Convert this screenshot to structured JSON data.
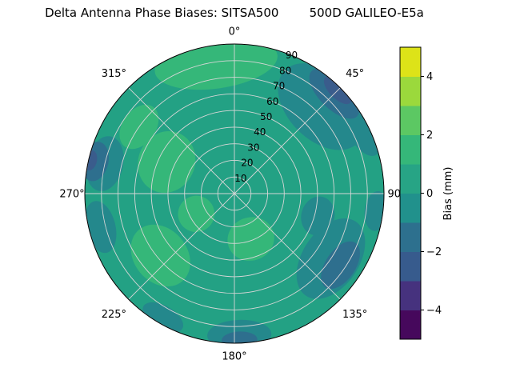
{
  "chart_data": {
    "type": "heatmap",
    "projection": "polar",
    "title": "Delta Antenna Phase Biases: SITSA500        500D GALILEO-E5a",
    "colormap": "viridis",
    "rmax": 90,
    "rlabel_angle_deg": 22.5,
    "angular_ticks": [
      {
        "deg": 0,
        "label": "0°"
      },
      {
        "deg": 45,
        "label": "45°"
      },
      {
        "deg": 90,
        "label": "90°"
      },
      {
        "deg": 135,
        "label": "135°"
      },
      {
        "deg": 180,
        "label": "180°"
      },
      {
        "deg": 225,
        "label": "225°"
      },
      {
        "deg": 270,
        "label": "270°"
      },
      {
        "deg": 315,
        "label": "315°"
      }
    ],
    "radial_ticks": {
      "values": [
        10,
        20,
        30,
        40,
        50,
        60,
        70,
        80,
        90
      ],
      "labels": [
        "10",
        "20",
        "30",
        "40",
        "50",
        "60",
        "70",
        "80",
        "90"
      ]
    },
    "bands_mm": {
      "m3": [
        -3,
        -2
      ],
      "m2": [
        -2,
        -1
      ],
      "m1": [
        -1,
        0
      ],
      "base": [
        0,
        1
      ],
      "p1": [
        1,
        2
      ]
    },
    "band_colors": {
      "m3": "#3a5c8c",
      "m2": "#2e6f8e",
      "m1": "#24888c",
      "base": "#23a184",
      "p1": "#35b779"
    },
    "field": {
      "base_band": "base",
      "regions": [
        {
          "az": 352,
          "zen": 79,
          "daz": 27,
          "dzen": 15,
          "band": "p1"
        },
        {
          "az": 295,
          "zen": 45,
          "daz": 24,
          "dzen": 17,
          "band": "p1"
        },
        {
          "az": 230,
          "zen": 58,
          "daz": 20,
          "dzen": 16,
          "band": "p1"
        },
        {
          "az": 160,
          "zen": 29,
          "daz": 28,
          "dzen": 13,
          "band": "p1"
        },
        {
          "az": 242,
          "zen": 26,
          "daz": 24,
          "dzen": 11,
          "band": "p1"
        },
        {
          "az": 305,
          "zen": 70,
          "daz": 12,
          "dzen": 10,
          "band": "p1"
        },
        {
          "az": 45,
          "zen": 74,
          "daz": 24,
          "dzen": 20,
          "band": "m1"
        },
        {
          "az": 62,
          "zen": 86,
          "daz": 13,
          "dzen": 9,
          "band": "m1"
        },
        {
          "az": 124,
          "zen": 70,
          "daz": 22,
          "dzen": 17,
          "band": "m1"
        },
        {
          "az": 178,
          "zen": 85,
          "daz": 13,
          "dzen": 9,
          "band": "m1"
        },
        {
          "az": 256,
          "zen": 83,
          "daz": 11,
          "dzen": 9,
          "band": "m1"
        },
        {
          "az": 283,
          "zen": 80,
          "daz": 12,
          "dzen": 11,
          "band": "m1"
        },
        {
          "az": 210,
          "zen": 86,
          "daz": 9,
          "dzen": 7,
          "band": "m1"
        },
        {
          "az": 97,
          "zen": 86,
          "daz": 8,
          "dzen": 7,
          "band": "m1"
        },
        {
          "az": 105,
          "zen": 52,
          "daz": 13,
          "dzen": 10,
          "band": "m1"
        },
        {
          "az": 45,
          "zen": 85,
          "daz": 13,
          "dzen": 9,
          "band": "m2"
        },
        {
          "az": 124,
          "zen": 77,
          "daz": 12,
          "dzen": 9,
          "band": "m2"
        },
        {
          "az": 283,
          "zen": 86,
          "daz": 8,
          "dzen": 8,
          "band": "m2"
        },
        {
          "az": 178,
          "zen": 88,
          "daz": 7,
          "dzen": 5,
          "band": "m2"
        },
        {
          "az": 45,
          "zen": 88,
          "daz": 7,
          "dzen": 5,
          "band": "m3"
        },
        {
          "az": 283,
          "zen": 89,
          "daz": 4,
          "dzen": 4,
          "band": "m3"
        }
      ]
    },
    "colorbar": {
      "label": "Bias (mm)",
      "min": -5,
      "max": 5,
      "tick_values": [
        -4,
        -2,
        0,
        2,
        4
      ],
      "tick_labels": [
        "−4",
        "−2",
        "0",
        "2",
        "4"
      ],
      "segment_colors": [
        "#46085c",
        "#46327e",
        "#375b8d",
        "#2d708e",
        "#21918c",
        "#27a485",
        "#35b779",
        "#5cc863",
        "#9bd93c",
        "#dde318"
      ]
    }
  }
}
